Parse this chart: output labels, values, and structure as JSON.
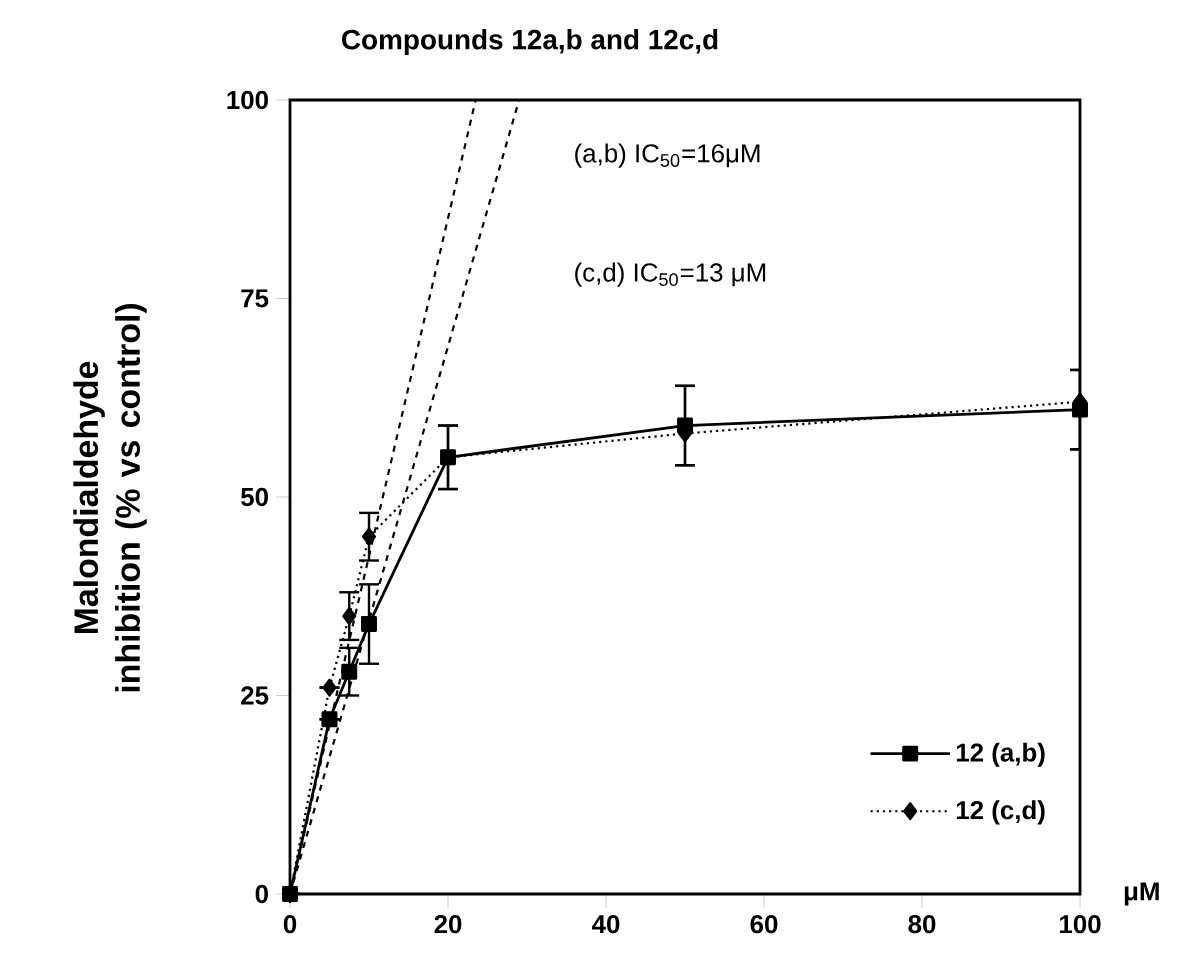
{
  "chart_data": {
    "type": "line",
    "title": "Compounds 12a,b and 12c,d",
    "xlabel": "μM",
    "ylabel": "Malondialdehyde inhibition (% vs control)",
    "xlim": [
      0,
      100
    ],
    "xticks": [
      0,
      20,
      40,
      60,
      80,
      100
    ],
    "ylim": [
      0,
      100
    ],
    "yticks": [
      0,
      25,
      50,
      75,
      100
    ],
    "grid": false,
    "legend": "bottom right",
    "annotations": [
      "(a,b) IC$_{50}$=16μM",
      "(c,d) IC$_{50}$=13 μM"
    ],
    "series": [
      {
        "name": "12  (a,b)",
        "color": "#000000",
        "marker": "square",
        "line_style": "solid",
        "x": [
          0,
          5,
          7.5,
          10,
          20,
          50,
          100
        ],
        "values": [
          0,
          22,
          28,
          34,
          55,
          59,
          61
        ],
        "errors": [
          null,
          null,
          3,
          5,
          4,
          5,
          5
        ]
      },
      {
        "name": "12  (c,d)",
        "color": "#000000",
        "marker": "diamond",
        "line_style": "dotted",
        "x": [
          0,
          5,
          7.5,
          10,
          20,
          50,
          100
        ],
        "values": [
          0,
          26,
          35,
          45,
          55,
          58,
          62
        ],
        "errors": [
          null,
          null,
          3,
          3,
          [
            51,
            59
          ],
          [
            54,
            64
          ],
          [
            56,
            66
          ]
        ]
      },
      {
        "color": "#000000",
        "marker": "none",
        "line_style": "dashed",
        "x": [
          0,
          23.5
        ],
        "values": [
          0,
          100
        ]
      },
      {
        "color": "#000000",
        "marker": "none",
        "line_style": "dashed",
        "x": [
          0,
          29
        ],
        "values": [
          0,
          100
        ]
      }
    ]
  }
}
